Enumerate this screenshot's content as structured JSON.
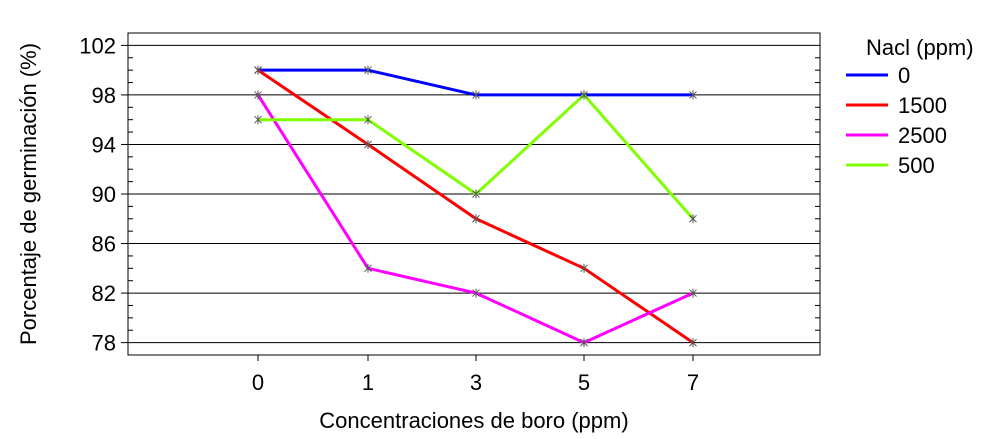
{
  "chart_data": {
    "type": "line",
    "categories": [
      "0",
      "1",
      "3",
      "5",
      "7"
    ],
    "xlabel": "Concentraciones de boro (ppm)",
    "ylabel": "Porcentaje de germinación (%)",
    "ylim": [
      77,
      103
    ],
    "yticks": [
      78,
      82,
      86,
      90,
      94,
      98,
      102
    ],
    "grid": true,
    "legend_title": "Nacl (ppm)",
    "legend_position": "right",
    "series": [
      {
        "name": "0",
        "color": "#0000ff",
        "values": [
          100,
          100,
          98,
          98,
          98
        ]
      },
      {
        "name": "1500",
        "color": "#ff0000",
        "values": [
          100,
          94,
          88,
          84,
          78
        ]
      },
      {
        "name": "2500",
        "color": "#ff00ff",
        "values": [
          98,
          84,
          82,
          78,
          82
        ]
      },
      {
        "name": "500",
        "color": "#80ff00",
        "values": [
          96,
          96,
          90,
          98,
          88
        ]
      }
    ]
  }
}
